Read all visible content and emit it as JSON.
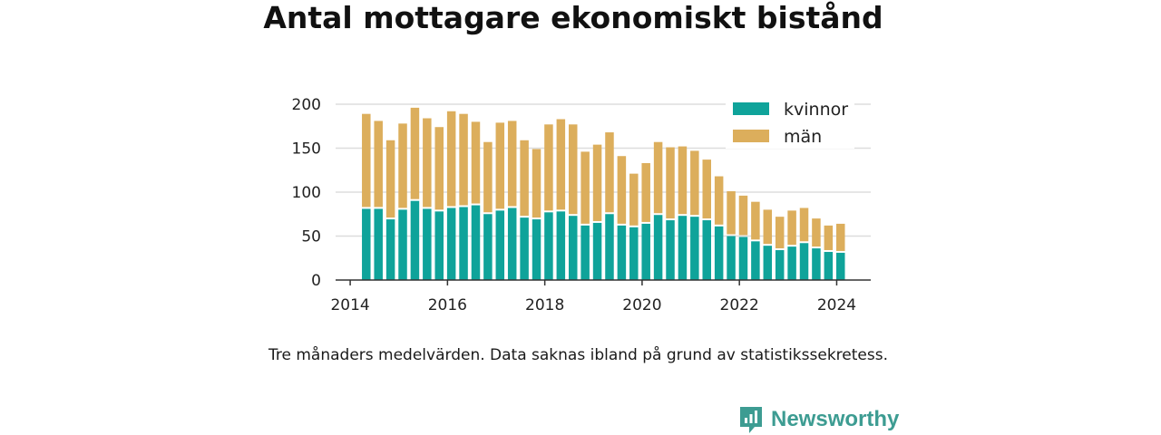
{
  "title": "Antal mottagare ekonomiskt bistånd",
  "note": "Tre månaders medelvärden. Data saknas ibland på grund av statistikssekretess.",
  "brand": {
    "name": "Newsworthy",
    "icon": "newsworthy-logo-icon",
    "color": "#3d9c92"
  },
  "chart_data": {
    "type": "bar",
    "stacked": true,
    "title": "Antal mottagare ekonomiskt bistånd",
    "xlabel": "",
    "ylabel": "",
    "ylim": [
      0,
      200
    ],
    "yticks": [
      0,
      50,
      100,
      150,
      200
    ],
    "xlim": [
      2013.7,
      2024.7
    ],
    "xticks": [
      2014,
      2016,
      2018,
      2020,
      2022,
      2024
    ],
    "xtick_labels": [
      "2014",
      "2016",
      "2018",
      "2020",
      "2022",
      "2024"
    ],
    "grid": "horizontal",
    "legend_position": "top-right",
    "x": [
      2014.33,
      2014.58,
      2014.83,
      2015.08,
      2015.33,
      2015.58,
      2015.83,
      2016.08,
      2016.33,
      2016.58,
      2016.83,
      2017.08,
      2017.33,
      2017.58,
      2017.83,
      2018.08,
      2018.33,
      2018.58,
      2018.83,
      2019.08,
      2019.33,
      2019.58,
      2019.83,
      2020.08,
      2020.33,
      2020.58,
      2020.83,
      2021.08,
      2021.33,
      2021.58,
      2021.83,
      2022.08,
      2022.33,
      2022.58,
      2022.83,
      2023.08,
      2023.33,
      2023.58,
      2023.83,
      2024.08
    ],
    "series": [
      {
        "name": "kvinnor",
        "color": "#0fa39a",
        "values": [
          81,
          81,
          69,
          80,
          90,
          81,
          78,
          82,
          83,
          85,
          75,
          79,
          82,
          71,
          69,
          77,
          78,
          73,
          62,
          65,
          75,
          62,
          60,
          64,
          74,
          68,
          73,
          72,
          68,
          61,
          50,
          49,
          44,
          39,
          34,
          38,
          42,
          36,
          32,
          31
        ]
      },
      {
        "name": "män",
        "color": "#dcae5c",
        "values": [
          108,
          100,
          90,
          98,
          106,
          103,
          96,
          110,
          106,
          95,
          82,
          100,
          99,
          88,
          80,
          100,
          105,
          104,
          84,
          89,
          93,
          79,
          61,
          69,
          83,
          83,
          79,
          75,
          69,
          57,
          51,
          47,
          45,
          41,
          38,
          41,
          40,
          34,
          30,
          33
        ]
      }
    ]
  }
}
